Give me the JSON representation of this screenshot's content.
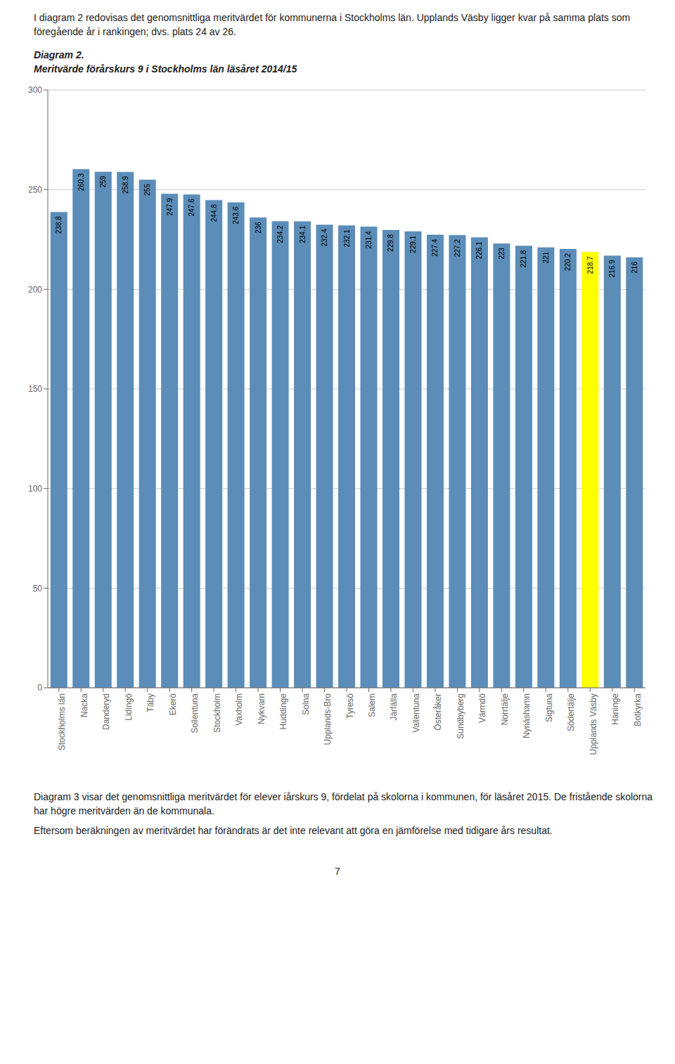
{
  "chart_data": {
    "type": "bar",
    "title": "Diagram 2.",
    "subtitle": "Meritvärde förårskurs 9 i Stockholms län läsåret 2014/15",
    "annotations": [
      "I diagram 2 redovisas det genomsnittliga meritvärdet för kommunerna i Stockholms län. Upplands Väsby ligger kvar på samma plats som föregående år i rankingen; dvs. plats 24 av 26.",
      "Diagram 3 visar det genomsnittliga meritvärdet för elever iårskurs 9, fördelat på skolorna i kommunen, för läsåret 2015. De fristående skolorna har högre meritvärden än de kommunala.",
      "Eftersom beräkningen av meritvärdet har förändrats är det inte relevant att göra en jämförelse med tidigare års resultat.",
      "7"
    ],
    "categories": [
      "Stockholms län",
      "Nacka",
      "Danderyd",
      "Lidingö",
      "Täby",
      "Ekerö",
      "Sollentuna",
      "Stockholm",
      "Vaxholm",
      "Nykvarn",
      "Huddinge",
      "Solna",
      "Upplands-Bro",
      "Tyresö",
      "Salem",
      "Järfälla",
      "Vallentuna",
      "Österåker",
      "Sundbyberg",
      "Värmdö",
      "Norrtälje",
      "Nynäshamn",
      "Sigtuna",
      "Södertälje",
      "Upplands Väsby",
      "Haninge",
      "Botkyrka"
    ],
    "values": [
      238.8,
      260.3,
      259,
      258.9,
      255,
      247.9,
      247.6,
      244.8,
      243.6,
      236,
      234.2,
      234.1,
      232.4,
      232.1,
      231.4,
      229.8,
      229.1,
      227.4,
      227.2,
      226.1,
      223,
      221.8,
      221,
      220.2,
      218.7,
      216.9,
      216
    ],
    "colors": [
      "#5B8DB8",
      "#5B8DB8",
      "#5B8DB8",
      "#5B8DB8",
      "#5B8DB8",
      "#5B8DB8",
      "#5B8DB8",
      "#5B8DB8",
      "#5B8DB8",
      "#5B8DB8",
      "#5B8DB8",
      "#5B8DB8",
      "#5B8DB8",
      "#5B8DB8",
      "#5B8DB8",
      "#5B8DB8",
      "#5B8DB8",
      "#5B8DB8",
      "#5B8DB8",
      "#5B8DB8",
      "#5B8DB8",
      "#5B8DB8",
      "#5B8DB8",
      "#5B8DB8",
      "#FFFF00",
      "#5B8DB8",
      "#5B8DB8"
    ],
    "ylim": [
      0,
      300
    ],
    "yticks": [
      0,
      50,
      100,
      150,
      200,
      250,
      300
    ],
    "grid": true,
    "data_labels": true
  }
}
